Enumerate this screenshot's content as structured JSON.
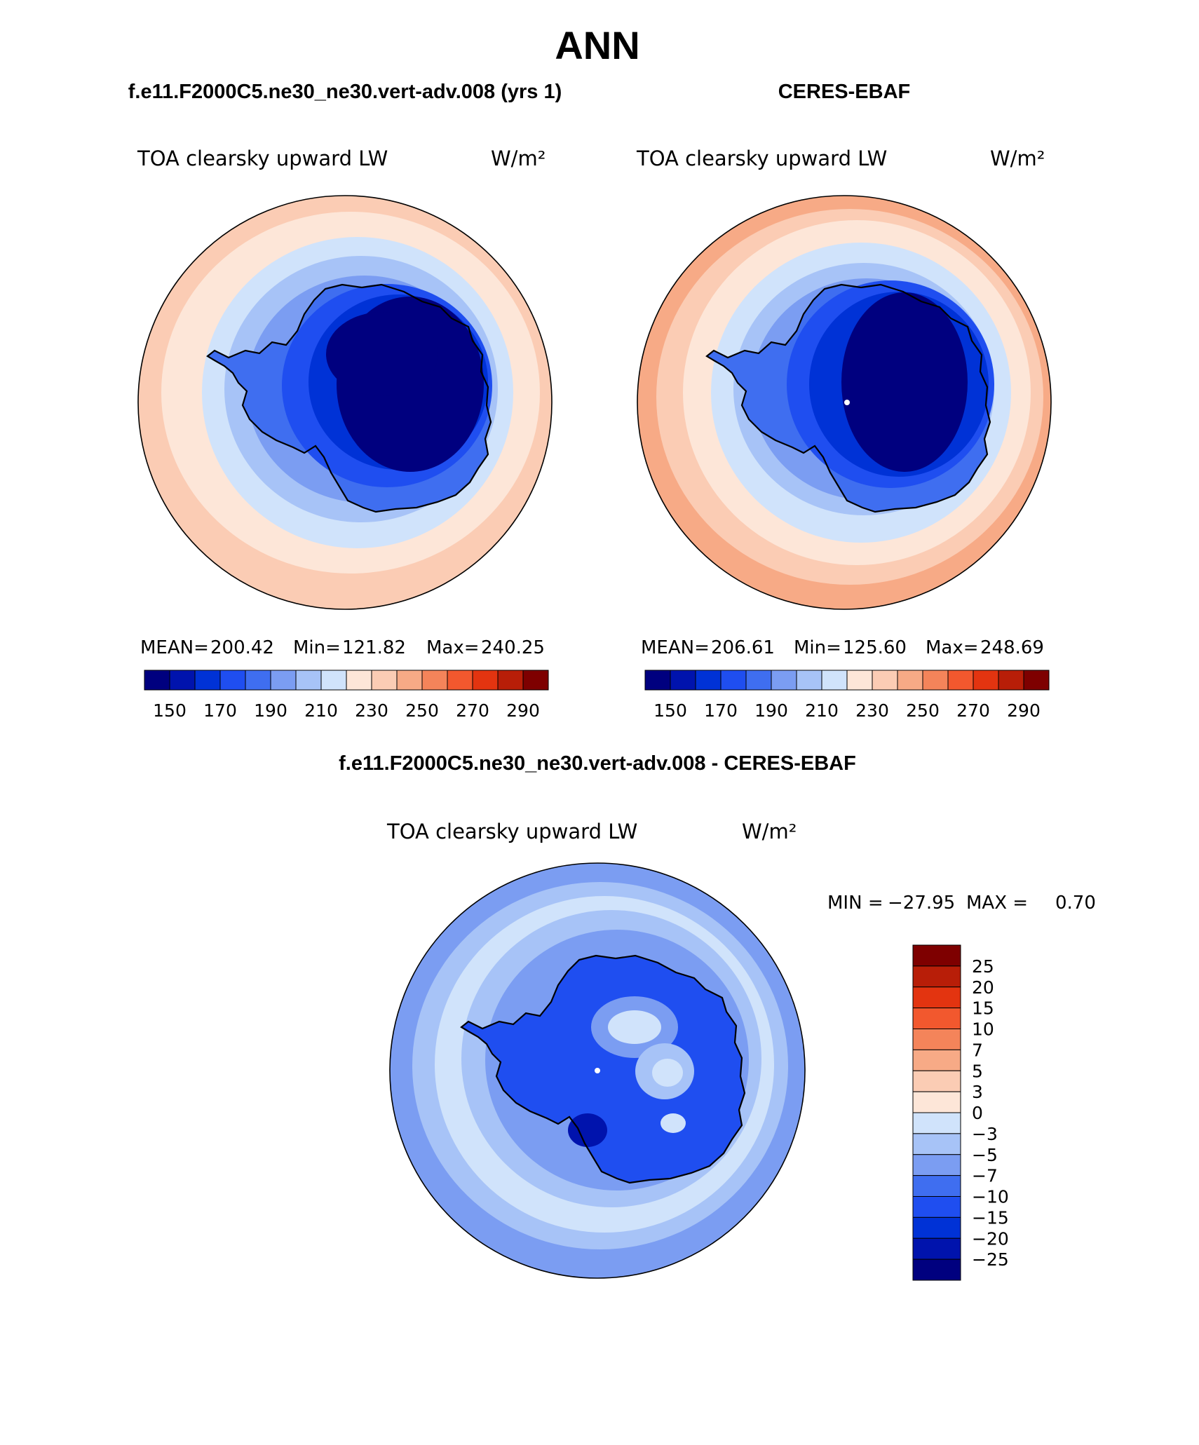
{
  "page": {
    "title": "ANN"
  },
  "panels": [
    {
      "id": "model",
      "header": "f.e11.F2000C5.ne30_ne30.vert-adv.008 (yrs 1)",
      "variable": "TOA clearsky upward LW",
      "units": "W/m²",
      "stats": {
        "mean_label": "MEAN=",
        "mean": "200.42",
        "min_label": "Min=",
        "min": "121.82",
        "max_label": "Max=",
        "max": "240.25"
      }
    },
    {
      "id": "obs",
      "header": "CERES-EBAF",
      "variable": "TOA clearsky upward LW",
      "units": "W/m²",
      "stats": {
        "mean_label": "MEAN=",
        "mean": "206.61",
        "min_label": "Min=",
        "min": "125.60",
        "max_label": "Max=",
        "max": "248.69"
      }
    }
  ],
  "difference": {
    "header": "f.e11.F2000C5.ne30_ne30.vert-adv.008 - CERES-EBAF",
    "variable": "TOA clearsky upward LW",
    "units": "W/m²",
    "minmax": {
      "min_label": "MIN =",
      "min": "−27.95",
      "max_label": "MAX =",
      "max": "0.70"
    }
  },
  "colorbars": {
    "absolute": {
      "colors": [
        "#00007f",
        "#0013ad",
        "#0032d6",
        "#1f4ef0",
        "#3f6ef0",
        "#7b9df2",
        "#a7c3f7",
        "#d0e3fb",
        "#fde6d8",
        "#fbccb4",
        "#f7aa86",
        "#f4845a",
        "#f2582e",
        "#e33410",
        "#b81e08",
        "#7e0000"
      ],
      "tick_labels": [
        "150",
        "170",
        "190",
        "210",
        "230",
        "250",
        "270",
        "290"
      ]
    },
    "difference": {
      "colors_top_to_bottom": [
        "#7e0000",
        "#b81e08",
        "#e33410",
        "#f2582e",
        "#f4845a",
        "#f7aa86",
        "#fbccb4",
        "#fde6d8",
        "#d0e3fb",
        "#a7c3f7",
        "#7b9df2",
        "#3f6ef0",
        "#1f4ef0",
        "#0032d6",
        "#0013ad",
        "#00007f"
      ],
      "tick_labels": [
        "25",
        "20",
        "15",
        "10",
        "7",
        "5",
        "3",
        "0",
        "−3",
        "−5",
        "−7",
        "−10",
        "−15",
        "−20",
        "−25"
      ]
    }
  }
}
